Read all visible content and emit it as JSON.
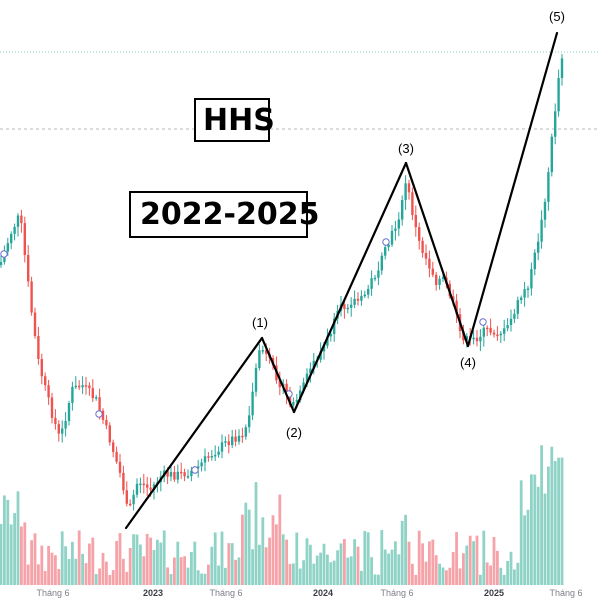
{
  "ticker": "HHS",
  "period": "2022-2025",
  "colors": {
    "up": "#26a69a",
    "down": "#ef5350",
    "vol_up": "#8fd3c7",
    "vol_down": "#f5a3a8",
    "wave_line": "#000000",
    "dotted_line": "#7fd0c4",
    "dashed_line": "#b8b8b8"
  },
  "chart_data": {
    "type": "candlestick",
    "x_axis_labels": [
      "Tháng 6",
      "2023",
      "Tháng 6",
      "2024",
      "Tháng 6",
      "2025",
      "Tháng 6"
    ],
    "wave_labels": [
      "(1)",
      "(2)",
      "(3)",
      "(4)",
      "(5)"
    ],
    "wave_points": [
      {
        "date": "2022-11",
        "label": ""
      },
      {
        "date": "2023-08",
        "label": "(1)"
      },
      {
        "date": "2023-10",
        "label": "(2)"
      },
      {
        "date": "2024-06",
        "label": "(3)"
      },
      {
        "date": "2024-11",
        "label": "(4)"
      },
      {
        "date": "2025-06",
        "label": "(5)"
      }
    ],
    "series": [
      {
        "type": "price"
      },
      {
        "type": "volume"
      }
    ]
  }
}
